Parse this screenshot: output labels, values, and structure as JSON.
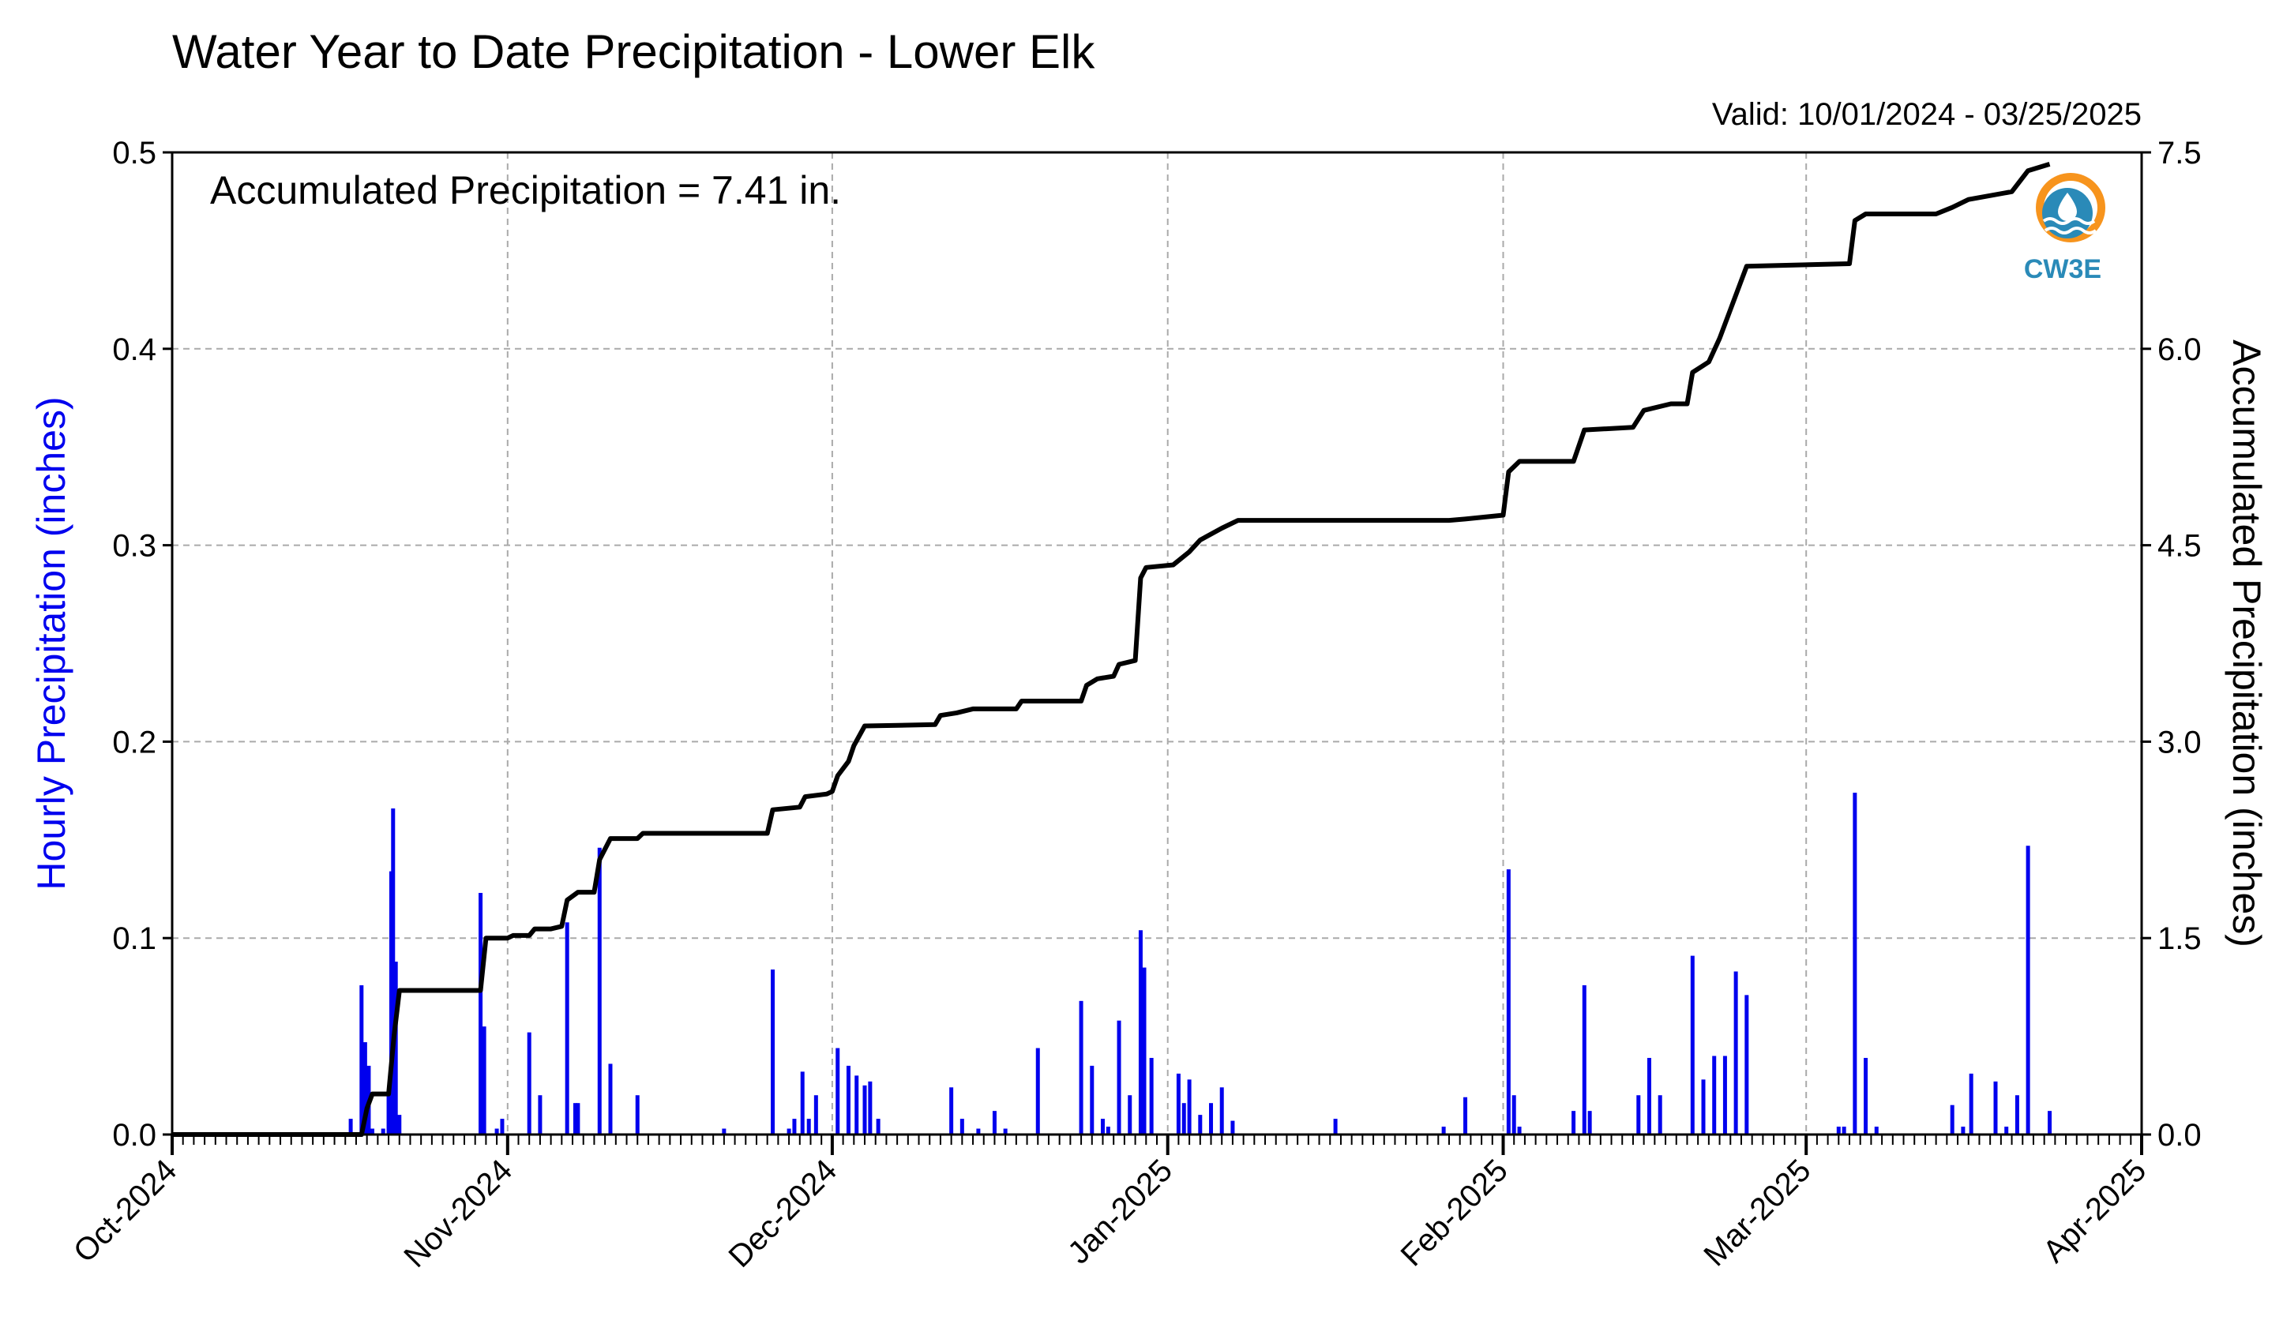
{
  "chart_data": {
    "type": "bar",
    "title": "Water Year to Date Precipitation - Lower Elk",
    "valid_text": "Valid: 10/01/2024 - 03/25/2025",
    "annotation": "Accumulated Precipitation = 7.41 in.",
    "ylabel_left": "Hourly Precipitation (inches)",
    "ylabel_right": "Accumulated Precipitation (inches)",
    "xlim": [
      "2024-10-01",
      "2025-04-01"
    ],
    "ylim_left": [
      0,
      0.5
    ],
    "ylim_right": [
      0,
      7.5
    ],
    "x_ticks": [
      {
        "date": "2024-10-01",
        "label": "Oct-2024"
      },
      {
        "date": "2024-11-01",
        "label": "Nov-2024"
      },
      {
        "date": "2024-12-01",
        "label": "Dec-2024"
      },
      {
        "date": "2025-01-01",
        "label": "Jan-2025"
      },
      {
        "date": "2025-02-01",
        "label": "Feb-2025"
      },
      {
        "date": "2025-03-01",
        "label": "Mar-2025"
      },
      {
        "date": "2025-04-01",
        "label": "Apr-2025"
      }
    ],
    "y_ticks_left": [
      "0.0",
      "0.1",
      "0.2",
      "0.3",
      "0.4",
      "0.5"
    ],
    "y_ticks_right": [
      "0.0",
      "1.5",
      "3.0",
      "4.5",
      "6.0",
      "7.5"
    ],
    "grid": true,
    "colors": {
      "hourly": "#0000ee",
      "accumulated": "#000000",
      "grid": "#aaaaaa",
      "left_label": "#0000ee"
    },
    "series": [
      {
        "name": "Hourly Precipitation",
        "type": "bar",
        "axis": "left",
        "points": [
          [
            "2024-10-17T12:00",
            0.008
          ],
          [
            "2024-10-18T12:00",
            0.076
          ],
          [
            "2024-10-18T20:00",
            0.047
          ],
          [
            "2024-10-19T04:00",
            0.035
          ],
          [
            "2024-10-19T12:00",
            0.003
          ],
          [
            "2024-10-20T12:00",
            0.003
          ],
          [
            "2024-10-21T00:00",
            0.02
          ],
          [
            "2024-10-21T06:00",
            0.134
          ],
          [
            "2024-10-21T10:00",
            0.166
          ],
          [
            "2024-10-21T16:00",
            0.088
          ],
          [
            "2024-10-22T00:00",
            0.01
          ],
          [
            "2024-10-29T12:00",
            0.123
          ],
          [
            "2024-10-29T20:00",
            0.055
          ],
          [
            "2024-10-31T00:00",
            0.003
          ],
          [
            "2024-10-31T12:00",
            0.008
          ],
          [
            "2024-11-03T00:00",
            0.052
          ],
          [
            "2024-11-04T00:00",
            0.02
          ],
          [
            "2024-11-06T12:00",
            0.108
          ],
          [
            "2024-11-07T06:00",
            0.016
          ],
          [
            "2024-11-07T12:00",
            0.016
          ],
          [
            "2024-11-09T12:00",
            0.146
          ],
          [
            "2024-11-10T12:00",
            0.036
          ],
          [
            "2024-11-13T00:00",
            0.02
          ],
          [
            "2024-11-21T00:00",
            0.003
          ],
          [
            "2024-11-25T12:00",
            0.084
          ],
          [
            "2024-11-27T00:00",
            0.003
          ],
          [
            "2024-11-27T12:00",
            0.008
          ],
          [
            "2024-11-28T06:00",
            0.032
          ],
          [
            "2024-11-28T20:00",
            0.008
          ],
          [
            "2024-11-29T12:00",
            0.02
          ],
          [
            "2024-12-01T12:00",
            0.044
          ],
          [
            "2024-12-02T12:00",
            0.035
          ],
          [
            "2024-12-03T06:00",
            0.03
          ],
          [
            "2024-12-04T00:00",
            0.025
          ],
          [
            "2024-12-04T12:00",
            0.027
          ],
          [
            "2024-12-05T06:00",
            0.008
          ],
          [
            "2024-12-12T00:00",
            0.024
          ],
          [
            "2024-12-13T00:00",
            0.008
          ],
          [
            "2024-12-14T12:00",
            0.003
          ],
          [
            "2024-12-16T00:00",
            0.012
          ],
          [
            "2024-12-17T00:00",
            0.003
          ],
          [
            "2024-12-20T00:00",
            0.044
          ],
          [
            "2024-12-24T00:00",
            0.068
          ],
          [
            "2024-12-25T00:00",
            0.035
          ],
          [
            "2024-12-26T00:00",
            0.008
          ],
          [
            "2024-12-26T12:00",
            0.004
          ],
          [
            "2024-12-27T12:00",
            0.058
          ],
          [
            "2024-12-28T12:00",
            0.02
          ],
          [
            "2024-12-29T12:00",
            0.104
          ],
          [
            "2024-12-29T20:00",
            0.085
          ],
          [
            "2024-12-30T12:00",
            0.039
          ],
          [
            "2025-01-02T00:00",
            0.031
          ],
          [
            "2025-01-02T12:00",
            0.016
          ],
          [
            "2025-01-03T00:00",
            0.028
          ],
          [
            "2025-01-04T00:00",
            0.01
          ],
          [
            "2025-01-05T00:00",
            0.016
          ],
          [
            "2025-01-06T00:00",
            0.024
          ],
          [
            "2025-01-07T00:00",
            0.007
          ],
          [
            "2025-01-16T12:00",
            0.008
          ],
          [
            "2025-01-26T12:00",
            0.004
          ],
          [
            "2025-01-28T12:00",
            0.019
          ],
          [
            "2025-02-01T12:00",
            0.135
          ],
          [
            "2025-02-02T00:00",
            0.02
          ],
          [
            "2025-02-02T12:00",
            0.004
          ],
          [
            "2025-02-07T12:00",
            0.012
          ],
          [
            "2025-02-08T12:00",
            0.076
          ],
          [
            "2025-02-09T00:00",
            0.012
          ],
          [
            "2025-02-13T12:00",
            0.02
          ],
          [
            "2025-02-14T12:00",
            0.039
          ],
          [
            "2025-02-15T12:00",
            0.02
          ],
          [
            "2025-02-18T12:00",
            0.091
          ],
          [
            "2025-02-19T12:00",
            0.028
          ],
          [
            "2025-02-20T12:00",
            0.04
          ],
          [
            "2025-02-21T12:00",
            0.04
          ],
          [
            "2025-02-22T12:00",
            0.083
          ],
          [
            "2025-02-23T12:00",
            0.071
          ],
          [
            "2025-03-04T00:00",
            0.004
          ],
          [
            "2025-03-04T12:00",
            0.004
          ],
          [
            "2025-03-05T12:00",
            0.174
          ],
          [
            "2025-03-06T12:00",
            0.039
          ],
          [
            "2025-03-07T12:00",
            0.004
          ],
          [
            "2025-03-14T12:00",
            0.015
          ],
          [
            "2025-03-15T12:00",
            0.004
          ],
          [
            "2025-03-16T06:00",
            0.031
          ],
          [
            "2025-03-18T12:00",
            0.027
          ],
          [
            "2025-03-19T12:00",
            0.004
          ],
          [
            "2025-03-20T12:00",
            0.02
          ],
          [
            "2025-03-21T12:00",
            0.147
          ],
          [
            "2025-03-23T12:00",
            0.012
          ]
        ]
      },
      {
        "name": "Accumulated Precipitation",
        "type": "line",
        "axis": "right",
        "points": [
          [
            "2024-10-01T00:00",
            0.0
          ],
          [
            "2024-10-18T12:00",
            0.0
          ],
          [
            "2024-10-19T00:00",
            0.2
          ],
          [
            "2024-10-19T12:00",
            0.31
          ],
          [
            "2024-10-21T00:00",
            0.31
          ],
          [
            "2024-10-21T12:00",
            0.75
          ],
          [
            "2024-10-22T00:00",
            1.1
          ],
          [
            "2024-10-29T12:00",
            1.1
          ],
          [
            "2024-10-30T00:00",
            1.5
          ],
          [
            "2024-11-01T00:00",
            1.5
          ],
          [
            "2024-11-01T12:00",
            1.52
          ],
          [
            "2024-11-03T00:00",
            1.52
          ],
          [
            "2024-11-03T12:00",
            1.57
          ],
          [
            "2024-11-05T00:00",
            1.57
          ],
          [
            "2024-11-06T00:00",
            1.59
          ],
          [
            "2024-11-06T12:00",
            1.79
          ],
          [
            "2024-11-07T12:00",
            1.85
          ],
          [
            "2024-11-09T00:00",
            1.85
          ],
          [
            "2024-11-09T12:00",
            2.1
          ],
          [
            "2024-11-10T12:00",
            2.26
          ],
          [
            "2024-11-13T00:00",
            2.26
          ],
          [
            "2024-11-13T12:00",
            2.3
          ],
          [
            "2024-11-25T00:00",
            2.3
          ],
          [
            "2024-11-25T12:00",
            2.48
          ],
          [
            "2024-11-28T00:00",
            2.5
          ],
          [
            "2024-11-28T12:00",
            2.58
          ],
          [
            "2024-11-30T12:00",
            2.6
          ],
          [
            "2024-12-01T00:00",
            2.62
          ],
          [
            "2024-12-01T12:00",
            2.74
          ],
          [
            "2024-12-02T12:00",
            2.85
          ],
          [
            "2024-12-03T00:00",
            2.97
          ],
          [
            "2024-12-04T00:00",
            3.12
          ],
          [
            "2024-12-10T12:00",
            3.13
          ],
          [
            "2024-12-11T00:00",
            3.2
          ],
          [
            "2024-12-12T12:00",
            3.22
          ],
          [
            "2024-12-14T00:00",
            3.25
          ],
          [
            "2024-12-18T00:00",
            3.25
          ],
          [
            "2024-12-18T12:00",
            3.31
          ],
          [
            "2024-12-24T00:00",
            3.31
          ],
          [
            "2024-12-24T12:00",
            3.43
          ],
          [
            "2024-12-25T12:00",
            3.48
          ],
          [
            "2024-12-27T00:00",
            3.5
          ],
          [
            "2024-12-27T12:00",
            3.59
          ],
          [
            "2024-12-29T00:00",
            3.62
          ],
          [
            "2024-12-29T12:00",
            4.25
          ],
          [
            "2024-12-30T00:00",
            4.33
          ],
          [
            "2025-01-01T12:00",
            4.35
          ],
          [
            "2025-01-03T00:00",
            4.45
          ],
          [
            "2025-01-04T00:00",
            4.54
          ],
          [
            "2025-01-06T00:00",
            4.63
          ],
          [
            "2025-01-07T12:00",
            4.69
          ],
          [
            "2025-01-27T00:00",
            4.69
          ],
          [
            "2025-01-28T12:00",
            4.7
          ],
          [
            "2025-02-01T00:00",
            4.73
          ],
          [
            "2025-02-01T12:00",
            5.06
          ],
          [
            "2025-02-02T12:00",
            5.14
          ],
          [
            "2025-02-07T12:00",
            5.14
          ],
          [
            "2025-02-08T12:00",
            5.38
          ],
          [
            "2025-02-13T00:00",
            5.4
          ],
          [
            "2025-02-14T00:00",
            5.53
          ],
          [
            "2025-02-16T12:00",
            5.58
          ],
          [
            "2025-02-18T00:00",
            5.58
          ],
          [
            "2025-02-18T12:00",
            5.82
          ],
          [
            "2025-02-20T00:00",
            5.9
          ],
          [
            "2025-02-21T00:00",
            6.08
          ],
          [
            "2025-02-22T00:00",
            6.3
          ],
          [
            "2025-02-23T12:00",
            6.63
          ],
          [
            "2025-03-05T00:00",
            6.65
          ],
          [
            "2025-03-05T12:00",
            6.98
          ],
          [
            "2025-03-06T12:00",
            7.03
          ],
          [
            "2025-03-13T00:00",
            7.03
          ],
          [
            "2025-03-14T12:00",
            7.08
          ],
          [
            "2025-03-16T00:00",
            7.14
          ],
          [
            "2025-03-20T00:00",
            7.2
          ],
          [
            "2025-03-21T12:00",
            7.36
          ],
          [
            "2025-03-23T12:00",
            7.41
          ]
        ]
      }
    ]
  },
  "logo": {
    "text": "CW3E",
    "ring_color": "#f7941d",
    "wave_color": "#2a8ab8",
    "text_color": "#2a8ab8"
  }
}
